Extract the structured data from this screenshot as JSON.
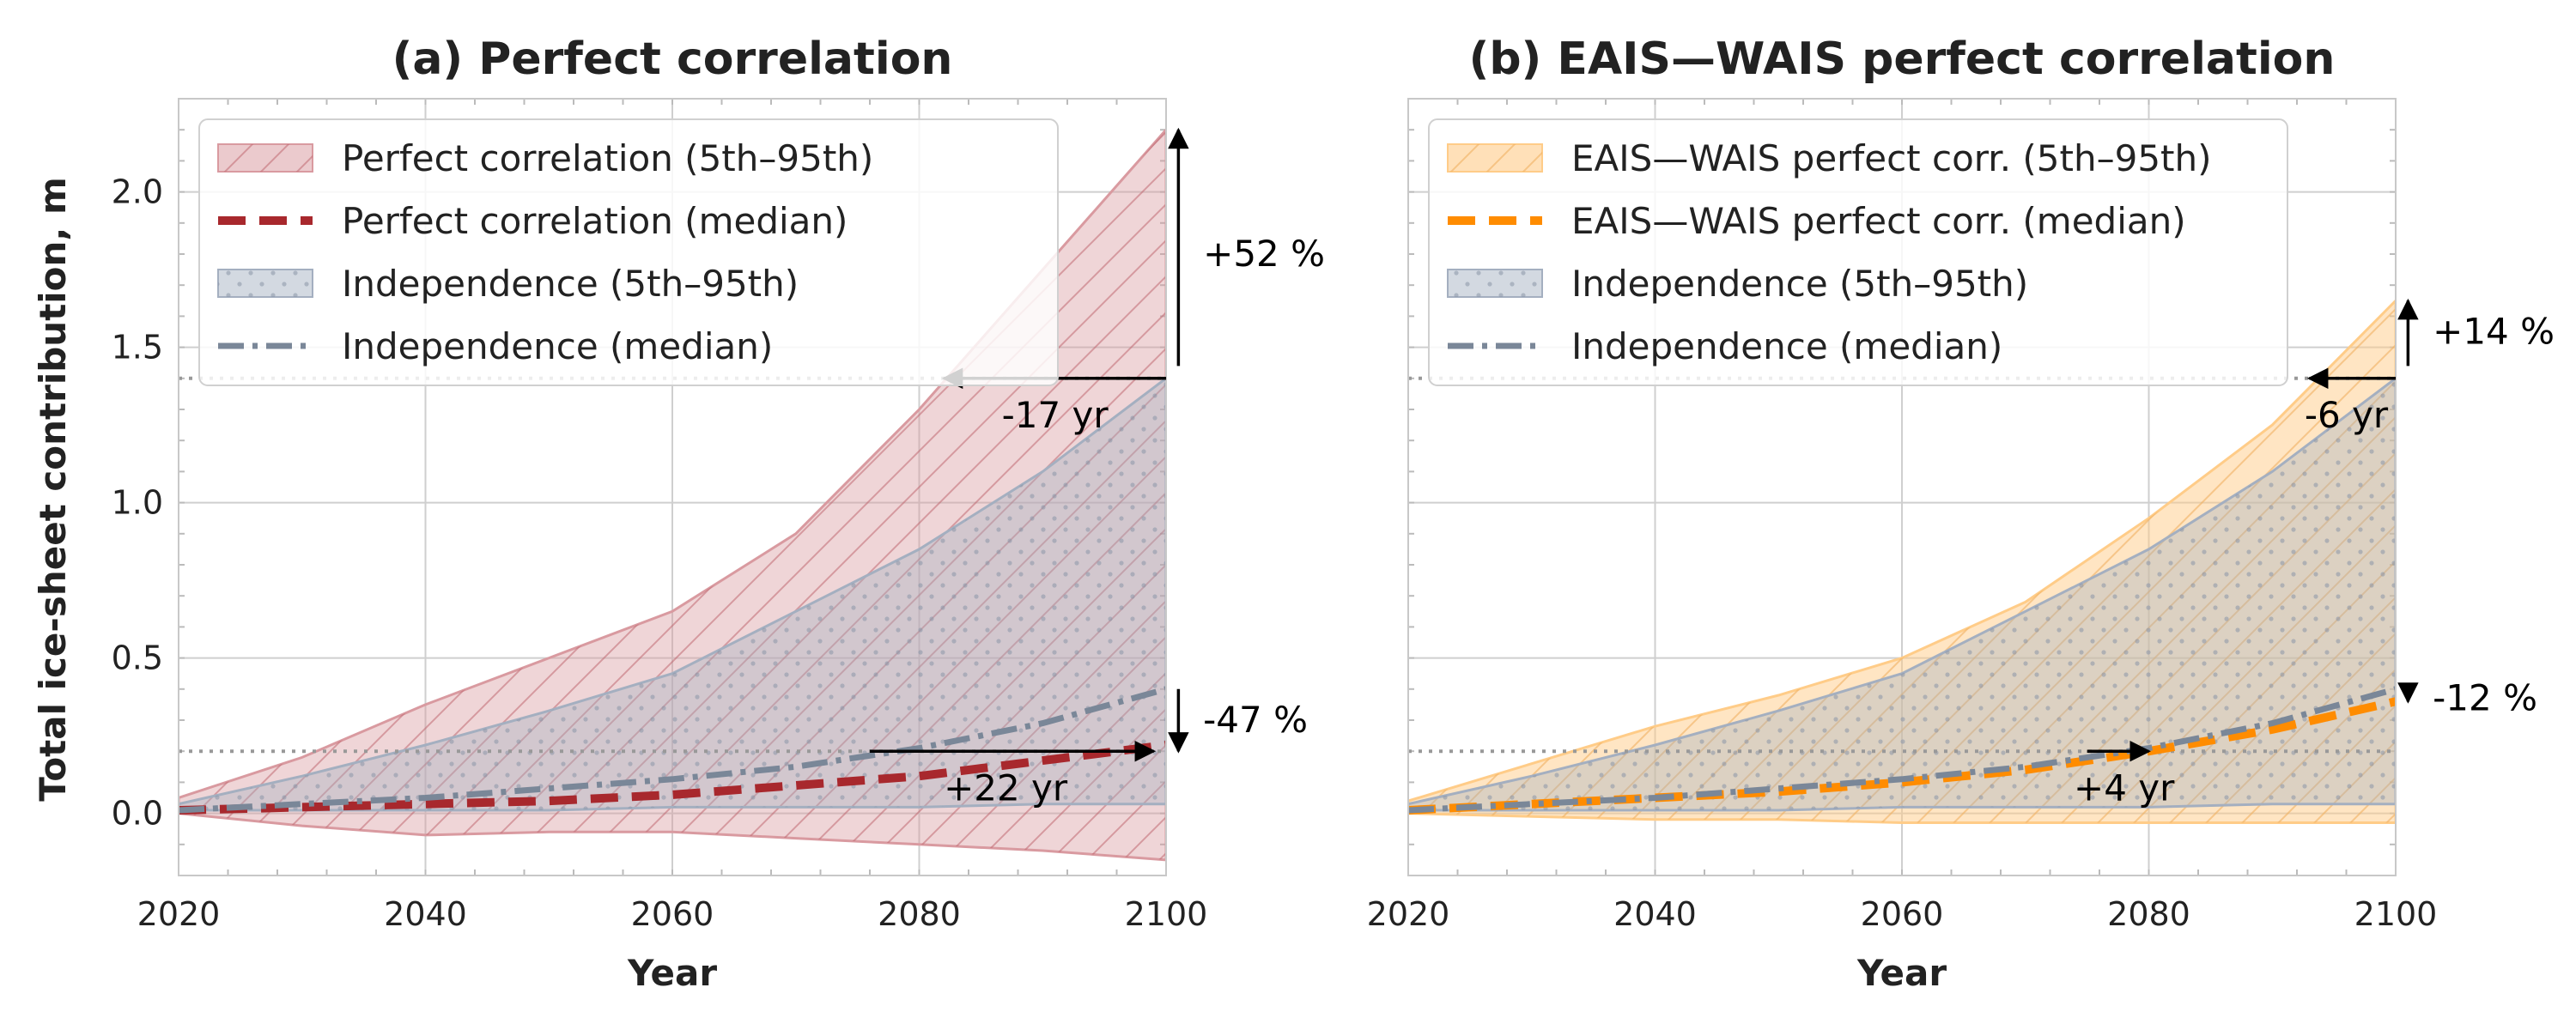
{
  "figure": {
    "ylabel": "Total ice-sheet contribution, m",
    "xlabel": "Year"
  },
  "colors": {
    "perfect": "#a8282d",
    "perfect_band": "#d99aa0",
    "eais": "#ff8c00",
    "eais_band": "#ffcc88",
    "independence": "#7a8798",
    "independence_band": "#a4afc0",
    "grid": "#cfcfcf",
    "reference": "#999999"
  },
  "chart_data": [
    {
      "id": "a",
      "type": "area",
      "title": "(a) Perfect correlation",
      "xlabel": "Year",
      "ylabel": "Total ice-sheet contribution, m",
      "xlim": [
        2020,
        2100
      ],
      "ylim": [
        -0.2,
        2.3
      ],
      "xticks": [
        2020,
        2040,
        2060,
        2080,
        2100
      ],
      "yticks": [
        0.0,
        0.5,
        1.0,
        1.5,
        2.0
      ],
      "ytick_labels": [
        "0.0",
        "0.5",
        "1.0",
        "1.5",
        "2.0"
      ],
      "grid": true,
      "legend_position": "top-left",
      "reference_lines": [
        1.4,
        0.2
      ],
      "x": [
        2020,
        2030,
        2040,
        2050,
        2060,
        2070,
        2080,
        2090,
        2100
      ],
      "series": [
        {
          "name": "Perfect correlation (5th–95th)",
          "kind": "band",
          "style": "perfect",
          "lower": [
            0.0,
            -0.04,
            -0.07,
            -0.06,
            -0.06,
            -0.08,
            -0.1,
            -0.12,
            -0.15
          ],
          "upper": [
            0.05,
            0.18,
            0.35,
            0.5,
            0.65,
            0.9,
            1.3,
            1.75,
            2.2
          ]
        },
        {
          "name": "Perfect correlation (median)",
          "kind": "line",
          "style": "perfect",
          "values": [
            0.01,
            0.02,
            0.03,
            0.04,
            0.06,
            0.09,
            0.12,
            0.17,
            0.22
          ]
        },
        {
          "name": "Independence (5th–95th)",
          "kind": "band",
          "style": "independence",
          "lower": [
            0.01,
            0.01,
            0.01,
            0.01,
            0.02,
            0.02,
            0.02,
            0.03,
            0.03
          ],
          "upper": [
            0.03,
            0.12,
            0.22,
            0.33,
            0.45,
            0.65,
            0.85,
            1.1,
            1.4
          ]
        },
        {
          "name": "Independence (median)",
          "kind": "line",
          "style": "independence",
          "values": [
            0.01,
            0.03,
            0.05,
            0.08,
            0.11,
            0.15,
            0.21,
            0.29,
            0.4
          ]
        }
      ],
      "annotations": [
        {
          "text": "+52 %",
          "kind": "vertical",
          "x": 2101,
          "y_from": 1.44,
          "y_to": 2.2,
          "direction": "up",
          "text_x": 2103,
          "text_y": 1.8,
          "anchor": "start"
        },
        {
          "text": "-17 yr",
          "kind": "horizontal",
          "y": 1.4,
          "x_from": 2100,
          "x_to": 2082,
          "direction": "left",
          "text_x": 2091,
          "text_y": 1.28,
          "anchor": "middle"
        },
        {
          "text": "-47 %",
          "kind": "vertical",
          "x": 2101,
          "y_from": 0.4,
          "y_to": 0.2,
          "direction": "down",
          "text_x": 2103,
          "text_y": 0.3,
          "anchor": "start"
        },
        {
          "text": "+22 yr",
          "kind": "horizontal",
          "y": 0.2,
          "x_from": 2076,
          "x_to": 2099,
          "direction": "right",
          "text_x": 2087,
          "text_y": 0.08,
          "anchor": "middle"
        }
      ]
    },
    {
      "id": "b",
      "type": "area",
      "title": "(b) EAIS—WAIS perfect correlation",
      "xlabel": "Year",
      "ylabel": "",
      "xlim": [
        2020,
        2100
      ],
      "ylim": [
        -0.2,
        2.3
      ],
      "xticks": [
        2020,
        2040,
        2060,
        2080,
        2100
      ],
      "yticks": [
        0.0,
        0.5,
        1.0,
        1.5,
        2.0
      ],
      "ytick_labels": [],
      "grid": true,
      "legend_position": "top-left",
      "reference_lines": [
        1.4,
        0.2
      ],
      "x": [
        2020,
        2030,
        2040,
        2050,
        2060,
        2070,
        2080,
        2090,
        2100
      ],
      "series": [
        {
          "name": "EAIS—WAIS perfect corr. (5th–95th)",
          "kind": "band",
          "style": "eais",
          "lower": [
            0.0,
            -0.01,
            -0.02,
            -0.02,
            -0.03,
            -0.03,
            -0.03,
            -0.03,
            -0.03
          ],
          "upper": [
            0.04,
            0.16,
            0.28,
            0.38,
            0.5,
            0.68,
            0.95,
            1.25,
            1.65
          ]
        },
        {
          "name": "EAIS—WAIS perfect corr. (median)",
          "kind": "line",
          "style": "eais",
          "values": [
            0.01,
            0.03,
            0.05,
            0.07,
            0.1,
            0.14,
            0.2,
            0.27,
            0.36
          ]
        },
        {
          "name": "Independence (5th–95th)",
          "kind": "band",
          "style": "independence",
          "lower": [
            0.01,
            0.01,
            0.01,
            0.01,
            0.02,
            0.02,
            0.02,
            0.03,
            0.03
          ],
          "upper": [
            0.03,
            0.12,
            0.22,
            0.33,
            0.45,
            0.65,
            0.85,
            1.1,
            1.4
          ]
        },
        {
          "name": "Independence (median)",
          "kind": "line",
          "style": "independence",
          "values": [
            0.01,
            0.03,
            0.05,
            0.08,
            0.11,
            0.15,
            0.21,
            0.29,
            0.4
          ]
        }
      ],
      "annotations": [
        {
          "text": "+14 %",
          "kind": "vertical",
          "x": 2101,
          "y_from": 1.44,
          "y_to": 1.65,
          "direction": "up",
          "text_x": 2103,
          "text_y": 1.55,
          "anchor": "start"
        },
        {
          "text": "-6 yr",
          "kind": "horizontal",
          "y": 1.4,
          "x_from": 2100,
          "x_to": 2093,
          "direction": "left",
          "text_x": 2096,
          "text_y": 1.28,
          "anchor": "middle"
        },
        {
          "text": "-12 %",
          "kind": "vertical",
          "x": 2101,
          "y_from": 0.4,
          "y_to": 0.36,
          "direction": "down",
          "text_x": 2103,
          "text_y": 0.37,
          "anchor": "start"
        },
        {
          "text": "+4 yr",
          "kind": "horizontal",
          "y": 0.2,
          "x_from": 2075,
          "x_to": 2080,
          "direction": "right",
          "text_x": 2078,
          "text_y": 0.08,
          "anchor": "middle"
        }
      ]
    }
  ]
}
